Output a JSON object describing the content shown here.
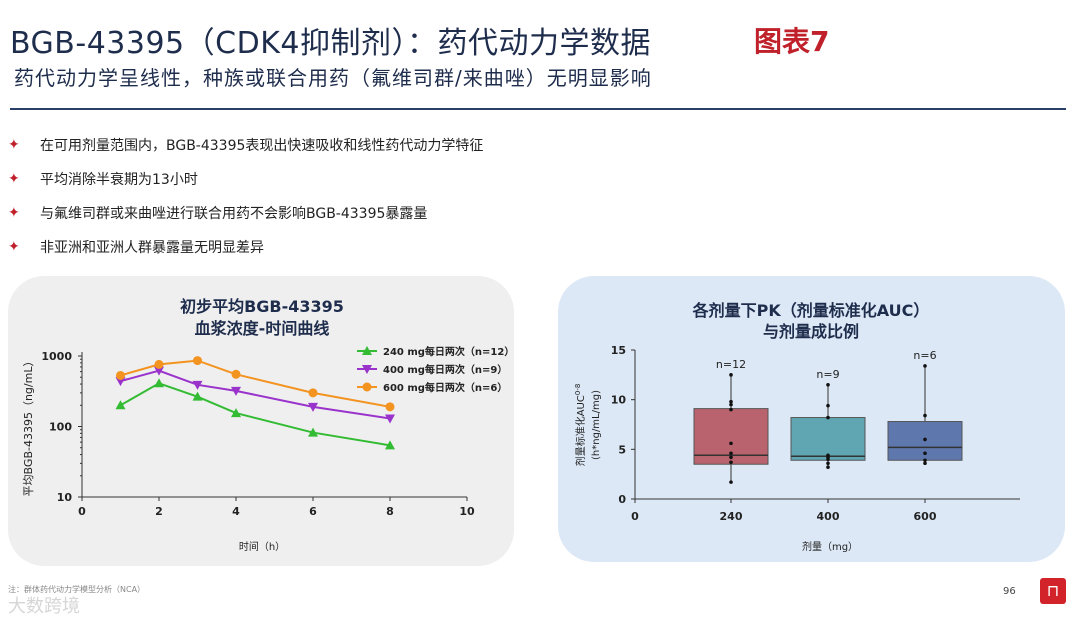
{
  "header": {
    "title": "BGB-43395（CDK4抑制剂）：药代动力学数据",
    "subtitle": "药代动力学呈线性，种族或联合用药（氟维司群/来曲唑）无明显影响",
    "figure_label": "图表7"
  },
  "bullets": [
    "在可用剂量范围内，BGB-43395表现出快速吸收和线性药代动力学特征",
    "平均消除半衰期为13小时",
    "与氟维司群或来曲唑进行联合用药不会影响BGB-43395暴露量",
    "非亚洲和亚洲人群暴露量无明显差异"
  ],
  "bullet_icon": "star-icon",
  "footer": {
    "note": "注：群体药代动力学模型分析（NCA）",
    "page_number": "96",
    "watermark": "大数跨境"
  },
  "colors": {
    "title": "#1f2d4d",
    "accent_red": "#c0202a",
    "series_240": "#33bb33",
    "series_400": "#9933cc",
    "series_600": "#f39320",
    "box_240": "#b8636d",
    "box_400": "#5fa6b2",
    "box_600": "#5e78ad"
  },
  "chart_data": [
    {
      "type": "line",
      "title": "初步平均BGB-43395",
      "subtitle": "血浆浓度-时间曲线",
      "xlabel": "时间（h）",
      "ylabel": "平均BGB-43395（ng/mL）",
      "yscale": "log",
      "xlim": [
        0,
        10
      ],
      "ylim": [
        10,
        1000
      ],
      "x_ticks": [
        "0",
        "2",
        "4",
        "6",
        "8",
        "10"
      ],
      "y_ticks": [
        "10",
        "100",
        "1000"
      ],
      "legend_position": "top-right",
      "series": [
        {
          "name": "240 mg每日两次（n=12）",
          "marker": "triangle",
          "x": [
            1,
            2,
            3,
            4,
            6,
            8
          ],
          "values": [
            200,
            410,
            265,
            155,
            82,
            54
          ]
        },
        {
          "name": "400 mg每日两次（n=9）",
          "marker": "inverted-triangle",
          "x": [
            1,
            2,
            3,
            4,
            6,
            8
          ],
          "values": [
            440,
            620,
            390,
            320,
            190,
            130
          ]
        },
        {
          "name": "600 mg每日两次（n=6）",
          "marker": "circle",
          "x": [
            1,
            2,
            3,
            4,
            6,
            8
          ],
          "values": [
            530,
            760,
            860,
            550,
            300,
            190
          ]
        }
      ]
    },
    {
      "type": "box",
      "title": "各剂量下PK（剂量标准化AUC）",
      "subtitle": "与剂量成比例",
      "xlabel": "剂量（mg）",
      "ylabel_line1": "剂量标准化AUC",
      "ylabel_sup": "0-8",
      "ylabel_line2": "(h*ng/mL/mg)",
      "ylim": [
        0,
        15
      ],
      "y_ticks": [
        "0",
        "5",
        "10",
        "15"
      ],
      "x_ticks": [
        "0",
        "240",
        "400",
        "600"
      ],
      "categories": [
        "240",
        "400",
        "600"
      ],
      "n_labels": [
        "n=12",
        "n=9",
        "n=6"
      ],
      "boxes": [
        {
          "min": 1.7,
          "q1": 3.5,
          "median": 4.4,
          "q3": 9.1,
          "max": 12.6,
          "points": [
            1.7,
            3.7,
            4.2,
            4.6,
            5.6,
            9.0,
            9.5,
            9.8,
            12.5
          ]
        },
        {
          "min": 3.2,
          "q1": 3.9,
          "median": 4.3,
          "q3": 8.2,
          "max": 11.6,
          "points": [
            3.2,
            3.6,
            4.0,
            4.2,
            4.4,
            8.2,
            9.4,
            11.5
          ]
        },
        {
          "min": 3.6,
          "q1": 3.9,
          "median": 5.2,
          "q3": 7.8,
          "max": 13.5,
          "points": [
            3.6,
            3.9,
            4.6,
            6.0,
            8.4,
            13.4
          ]
        }
      ]
    }
  ]
}
